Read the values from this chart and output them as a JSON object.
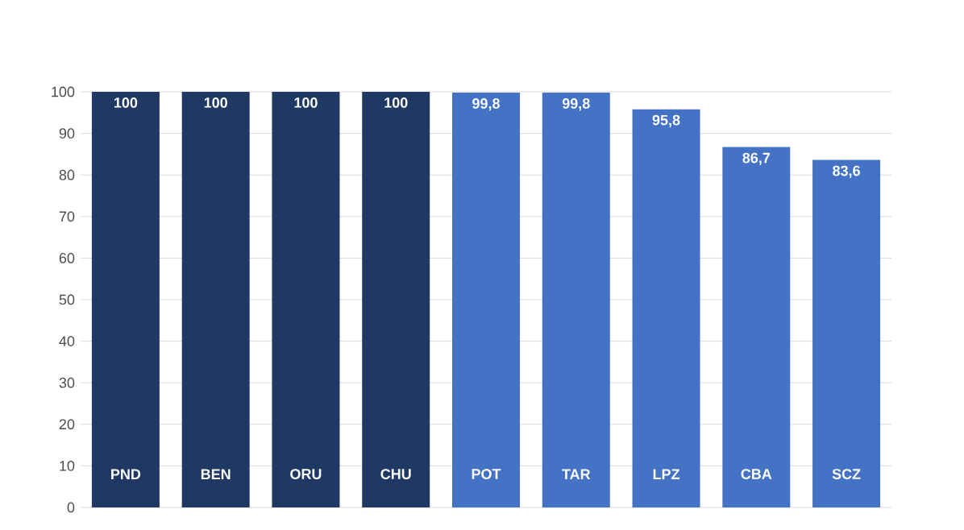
{
  "chart_data": {
    "type": "bar",
    "categories": [
      "PND",
      "BEN",
      "ORU",
      "CHU",
      "POT",
      "TAR",
      "LPZ",
      "CBA",
      "SCZ"
    ],
    "values": [
      100,
      100,
      100,
      100,
      99.8,
      99.8,
      95.8,
      86.7,
      83.6
    ],
    "colors": [
      "#203864",
      "#203864",
      "#203864",
      "#203864",
      "#4472c4",
      "#4472c4",
      "#4472c4",
      "#4472c4",
      "#4472c4"
    ],
    "value_labels": [
      "100",
      "100",
      "100",
      "100",
      "99,8",
      "99,8",
      "95,8",
      "86,7",
      "83,6"
    ],
    "ylim": [
      0,
      100
    ],
    "yticks": [
      0,
      10,
      20,
      30,
      40,
      50,
      60,
      70,
      80,
      90,
      100
    ],
    "grid": "y"
  }
}
